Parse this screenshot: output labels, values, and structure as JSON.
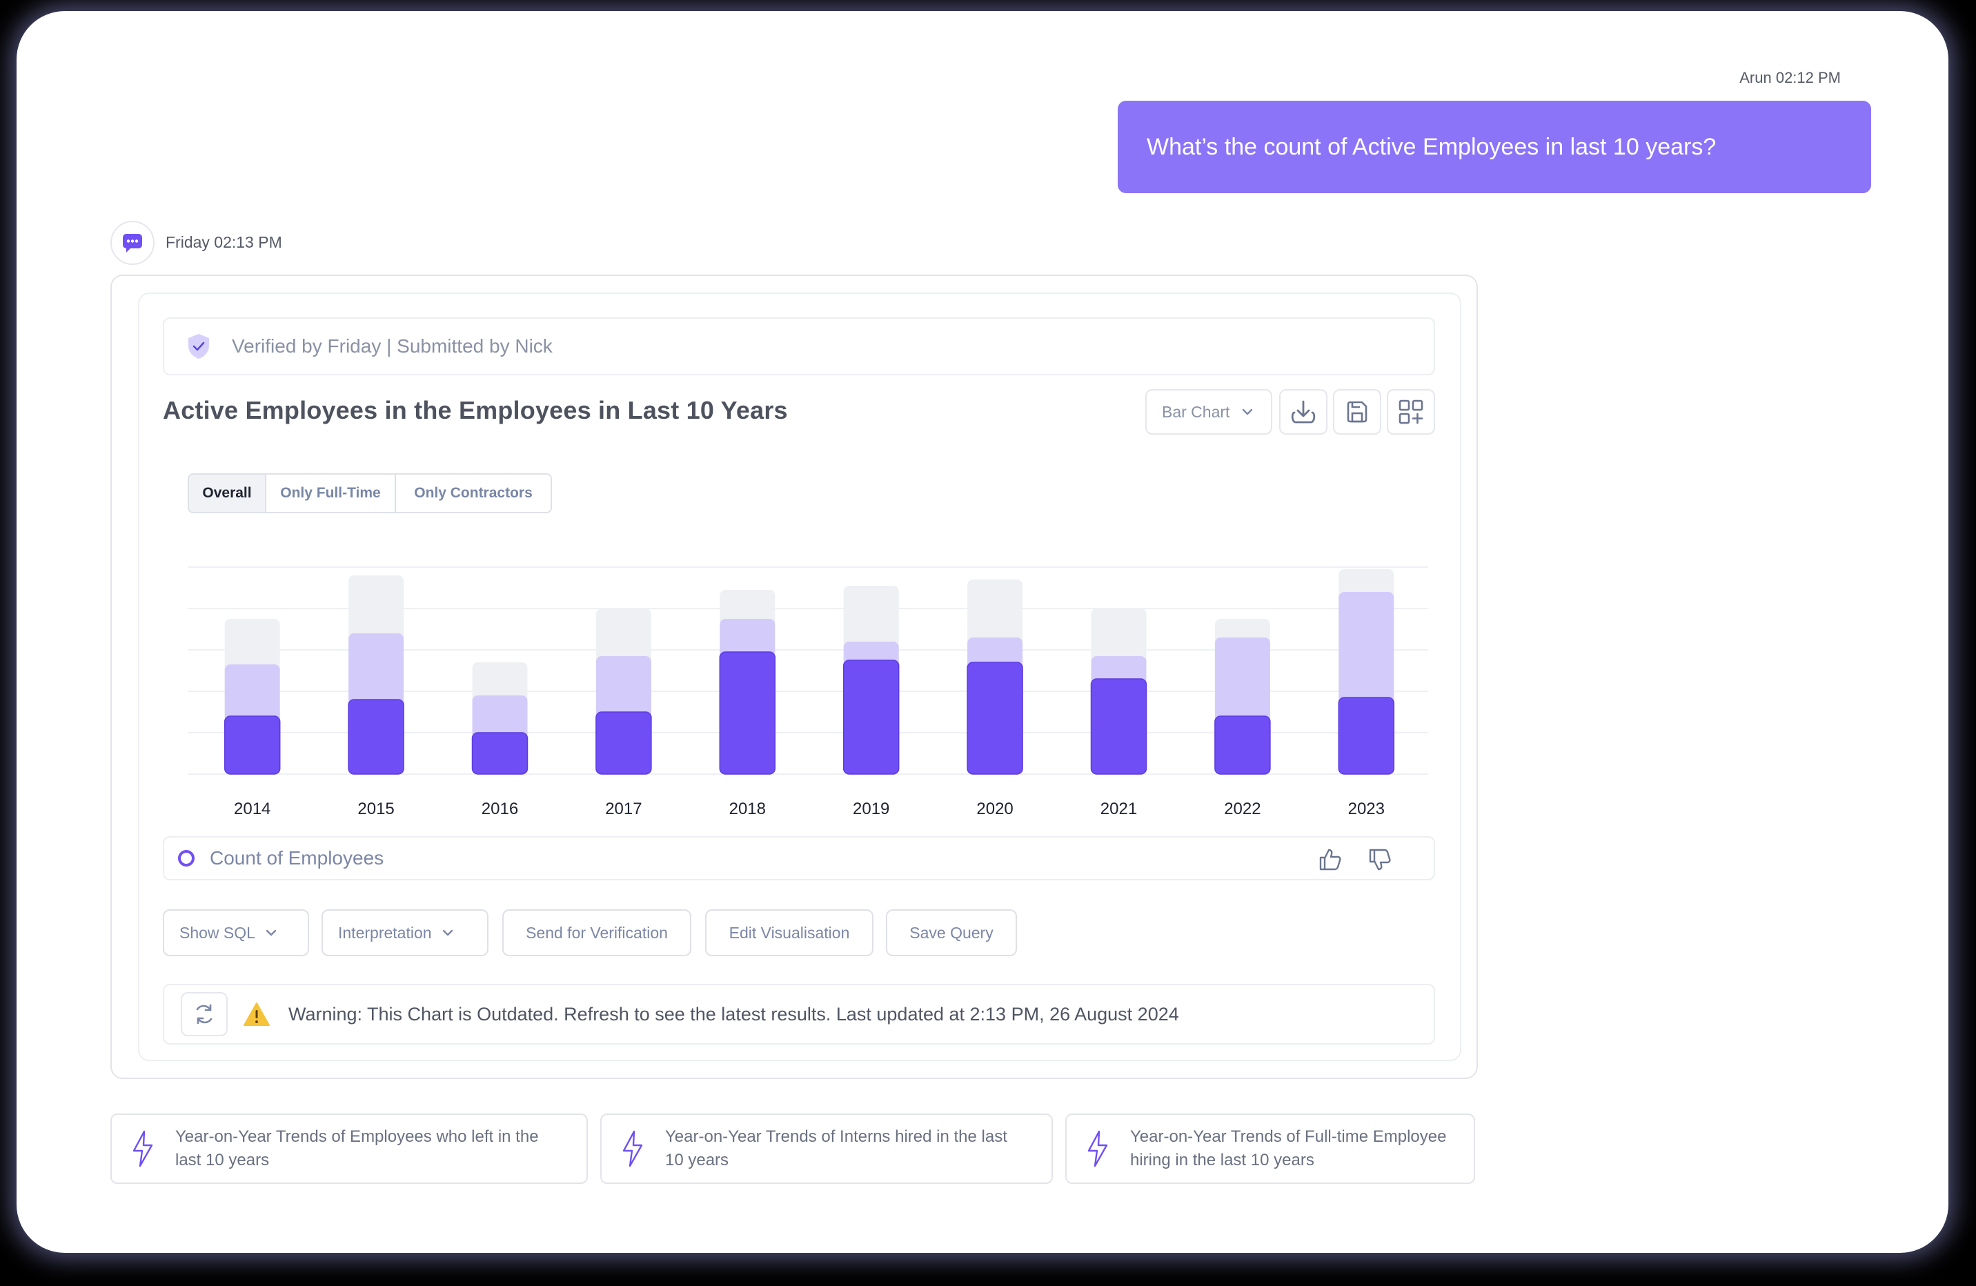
{
  "user_message": {
    "meta": "Arun 02:12 PM",
    "text": "What’s the count of Active Employees in last 10 years?"
  },
  "bot": {
    "meta": "Friday 02:13 PM",
    "avatar_icon": "chat-bubble-icon"
  },
  "verified": {
    "text": "Verified by Friday | Submitted by Nick",
    "icon": "shield-check-icon"
  },
  "chart_header": {
    "title": "Active Employees in the Employees in Last 10 Years",
    "chart_type": "Bar Chart",
    "actions": [
      "download-icon",
      "save-icon",
      "add-widget-icon"
    ]
  },
  "tabs": [
    {
      "label": "Overall",
      "active": true
    },
    {
      "label": "Only Full-Time",
      "active": false
    },
    {
      "label": "Only Contractors",
      "active": false
    }
  ],
  "chart_data": {
    "type": "bar",
    "stacked": true,
    "categories": [
      "2014",
      "2015",
      "2016",
      "2017",
      "2018",
      "2019",
      "2020",
      "2021",
      "2022",
      "2023"
    ],
    "series": [
      {
        "values": [
          2.8,
          3.6,
          2.0,
          3.0,
          5.9,
          5.5,
          5.4,
          4.6,
          2.8,
          3.7
        ]
      },
      {
        "values": [
          2.5,
          3.2,
          1.8,
          2.7,
          1.6,
          0.9,
          1.2,
          1.1,
          3.8,
          5.1
        ]
      },
      {
        "values": [
          2.2,
          2.8,
          1.6,
          2.3,
          1.4,
          2.7,
          2.8,
          2.3,
          0.9,
          1.1
        ]
      }
    ],
    "ylim": [
      0,
      10
    ],
    "grid": true,
    "colors": [
      "#6f4ef6",
      "#d3ccfa",
      "#eef0f3"
    ]
  },
  "legend": {
    "label": "Count of Employees",
    "icons": [
      "thumbs-up-icon",
      "thumbs-down-icon"
    ]
  },
  "actions": {
    "show_sql": "Show SQL",
    "interpretation": "Interpretation",
    "send_verification": "Send for Verification",
    "edit_visualisation": "Edit Visualisation",
    "save_query": "Save Query"
  },
  "warning": {
    "text": "Warning: This Chart is Outdated. Refresh to see the latest results. Last updated at 2:13 PM, 26 August 2024"
  },
  "suggestions": [
    {
      "line1": "Year-on-Year Trends of Employees who left in the",
      "line2": "last 10 years"
    },
    {
      "line1": "Year-on-Year Trends of Interns hired in the last",
      "line2": "10 years"
    },
    {
      "line1": "Year-on-Year Trends of Full-time Employee",
      "line2": "hiring in the last 10 years"
    }
  ],
  "colors": {
    "accent": "#7050f4",
    "user_bubble": "#8b74f8",
    "warning": "#f5c33b"
  }
}
